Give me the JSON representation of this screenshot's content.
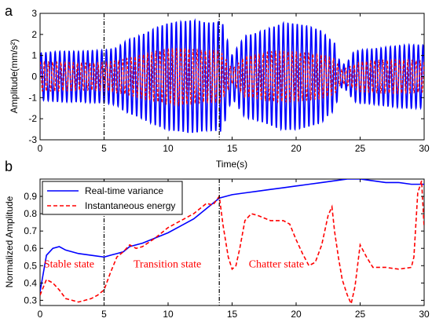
{
  "chart_data": [
    {
      "panel": "a",
      "type": "line",
      "xlabel": "Time(s)",
      "ylabel": "Amplitude(mm/s²)",
      "xlim": [
        0,
        30
      ],
      "ylim": [
        -3,
        3
      ],
      "xticks": [
        "0",
        "5",
        "10",
        "15",
        "20",
        "25",
        "30"
      ],
      "yticks": [
        "-3",
        "-2",
        "-1",
        "0",
        "1",
        "2",
        "3"
      ],
      "series": [
        {
          "color": "#0000ff",
          "style": "solid",
          "envelope_t": [
            0,
            1,
            2,
            3,
            4,
            5,
            6,
            6.5,
            7,
            8,
            9,
            10,
            11,
            12,
            13,
            14,
            14.2,
            14.5,
            15,
            16,
            17,
            18,
            19,
            20,
            21,
            22,
            22.5,
            23,
            23.5,
            24,
            24.5,
            25,
            26,
            27,
            28,
            29,
            30
          ],
          "envelope_a": [
            1.2,
            1.2,
            1.2,
            1.2,
            1.3,
            1.4,
            1.6,
            1.9,
            2.1,
            2.3,
            2.5,
            2.6,
            2.6,
            2.7,
            2.7,
            2.9,
            3.0,
            2.3,
            1.2,
            2.3,
            2.4,
            2.5,
            2.6,
            2.5,
            2.4,
            2.3,
            2.0,
            1.8,
            0.6,
            0.8,
            1.4,
            1.5,
            1.5,
            1.5,
            1.5,
            1.5,
            1.5
          ]
        },
        {
          "color": "#ff0000",
          "style": "dashed",
          "envelope_t": [
            0,
            1,
            2,
            3,
            4,
            5,
            6,
            7,
            8,
            9,
            10,
            11,
            12,
            13,
            14,
            14.5,
            15,
            16,
            17,
            18,
            19,
            20,
            21,
            22,
            23,
            23.5,
            24,
            25,
            26,
            27,
            28,
            29,
            30
          ],
          "envelope_a": [
            0.7,
            0.7,
            0.7,
            0.7,
            0.75,
            0.8,
            0.9,
            1.0,
            1.1,
            1.2,
            1.3,
            1.4,
            1.4,
            1.4,
            1.5,
            1.0,
            0.4,
            1.1,
            1.1,
            1.2,
            1.2,
            1.2,
            1.2,
            1.2,
            1.0,
            0.4,
            0.5,
            0.8,
            0.8,
            0.8,
            0.8,
            0.8,
            0.8
          ]
        }
      ],
      "vlines": [
        5,
        14
      ]
    },
    {
      "panel": "b",
      "type": "line",
      "ylabel": "Normalized Amplitude",
      "xlim": [
        0,
        30
      ],
      "ylim": [
        0.27,
        1.0
      ],
      "xticks": [
        "0",
        "5",
        "10",
        "15",
        "20",
        "25",
        "30"
      ],
      "yticks": [
        "0.3",
        "0.4",
        "0.5",
        "0.6",
        "0.7",
        "0.8",
        "0.9"
      ],
      "legend_position": "top-left",
      "series": [
        {
          "name": "Real-time variance",
          "color": "#0000ff",
          "style": "solid",
          "x": [
            0,
            0.5,
            1,
            1.5,
            2,
            3,
            4,
            5,
            5.5,
            6,
            6.5,
            7,
            8,
            9,
            10,
            11,
            12,
            13,
            14,
            15,
            16,
            17,
            18,
            19,
            20,
            21,
            22,
            23,
            24,
            25,
            26,
            27,
            28,
            29,
            30
          ],
          "y": [
            0.35,
            0.56,
            0.6,
            0.61,
            0.59,
            0.57,
            0.56,
            0.55,
            0.56,
            0.57,
            0.58,
            0.61,
            0.63,
            0.66,
            0.69,
            0.73,
            0.77,
            0.83,
            0.89,
            0.91,
            0.92,
            0.93,
            0.94,
            0.95,
            0.96,
            0.97,
            0.98,
            0.99,
            1.0,
            1.0,
            0.99,
            0.98,
            0.98,
            0.97,
            0.97
          ]
        },
        {
          "name": "Instantaneous energy",
          "color": "#ff0000",
          "style": "dashed",
          "x": [
            0,
            0.5,
            1,
            1.5,
            2,
            2.5,
            3,
            3.5,
            4,
            4.5,
            5,
            5.5,
            6,
            6.5,
            7,
            7.5,
            8,
            9,
            10,
            11,
            12,
            13,
            13.5,
            14,
            14.3,
            14.7,
            15,
            15.3,
            15.6,
            16,
            16.5,
            17,
            18,
            19,
            19.5,
            20,
            20.5,
            21,
            21.5,
            22,
            22.5,
            22.8,
            23,
            23.3,
            23.6,
            24,
            24.3,
            24.6,
            25,
            25.5,
            26,
            27,
            28,
            29,
            29.2,
            29.5,
            29.8,
            30
          ],
          "y": [
            0.33,
            0.42,
            0.4,
            0.36,
            0.31,
            0.3,
            0.29,
            0.3,
            0.31,
            0.33,
            0.36,
            0.46,
            0.55,
            0.58,
            0.62,
            0.6,
            0.61,
            0.66,
            0.72,
            0.76,
            0.8,
            0.86,
            0.85,
            0.9,
            0.73,
            0.55,
            0.48,
            0.5,
            0.6,
            0.76,
            0.8,
            0.79,
            0.76,
            0.76,
            0.74,
            0.65,
            0.57,
            0.5,
            0.52,
            0.62,
            0.79,
            0.84,
            0.7,
            0.55,
            0.42,
            0.33,
            0.28,
            0.38,
            0.62,
            0.55,
            0.49,
            0.49,
            0.48,
            0.49,
            0.55,
            0.92,
            0.99,
            0.72
          ]
        }
      ],
      "vlines": [
        5,
        14
      ],
      "annotations": [
        {
          "text": "Stable state",
          "x": 0.3,
          "y": 0.49
        },
        {
          "text": "Transition state",
          "x": 7.3,
          "y": 0.49
        },
        {
          "text": "Chatter state",
          "x": 16.3,
          "y": 0.49
        }
      ]
    }
  ]
}
